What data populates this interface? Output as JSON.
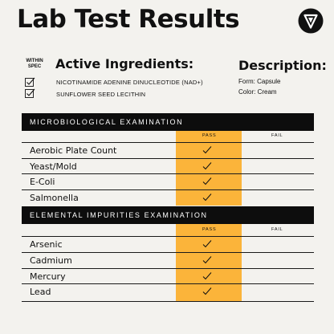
{
  "page_title": "Lab Test Results",
  "brand_icon": "v-shield-logo-icon",
  "within_spec_label": "WITHIN SPEC",
  "active_ingredients": {
    "title": "Active Ingredients:",
    "items": [
      "NICOTINAMIDE ADENINE DINUCLEOTIDE (NAD+)",
      "SUNFLOWER SEED LECITHIN"
    ]
  },
  "description": {
    "title": "Description:",
    "form": "Form: Capsule",
    "color": "Color: Cream"
  },
  "microbiological": {
    "title": "MICROBIOLOGICAL EXAMINATION",
    "pass_label": "PASS",
    "fail_label": "FAIL",
    "rows": [
      "Aerobic Plate Count",
      "Yeast/Mold",
      "E-Coli",
      "Salmonella"
    ]
  },
  "elemental": {
    "title": "ELEMENTAL IMPURITIES EXAMINATION",
    "pass_label": "PASS",
    "fail_label": "FAIL",
    "rows": [
      "Arsenic",
      "Cadmium",
      "Mercury",
      "Lead"
    ]
  },
  "colors": {
    "pass_highlight": "#fbb43a",
    "header_bar": "#0d0d0d",
    "background": "#f3f2ee"
  }
}
